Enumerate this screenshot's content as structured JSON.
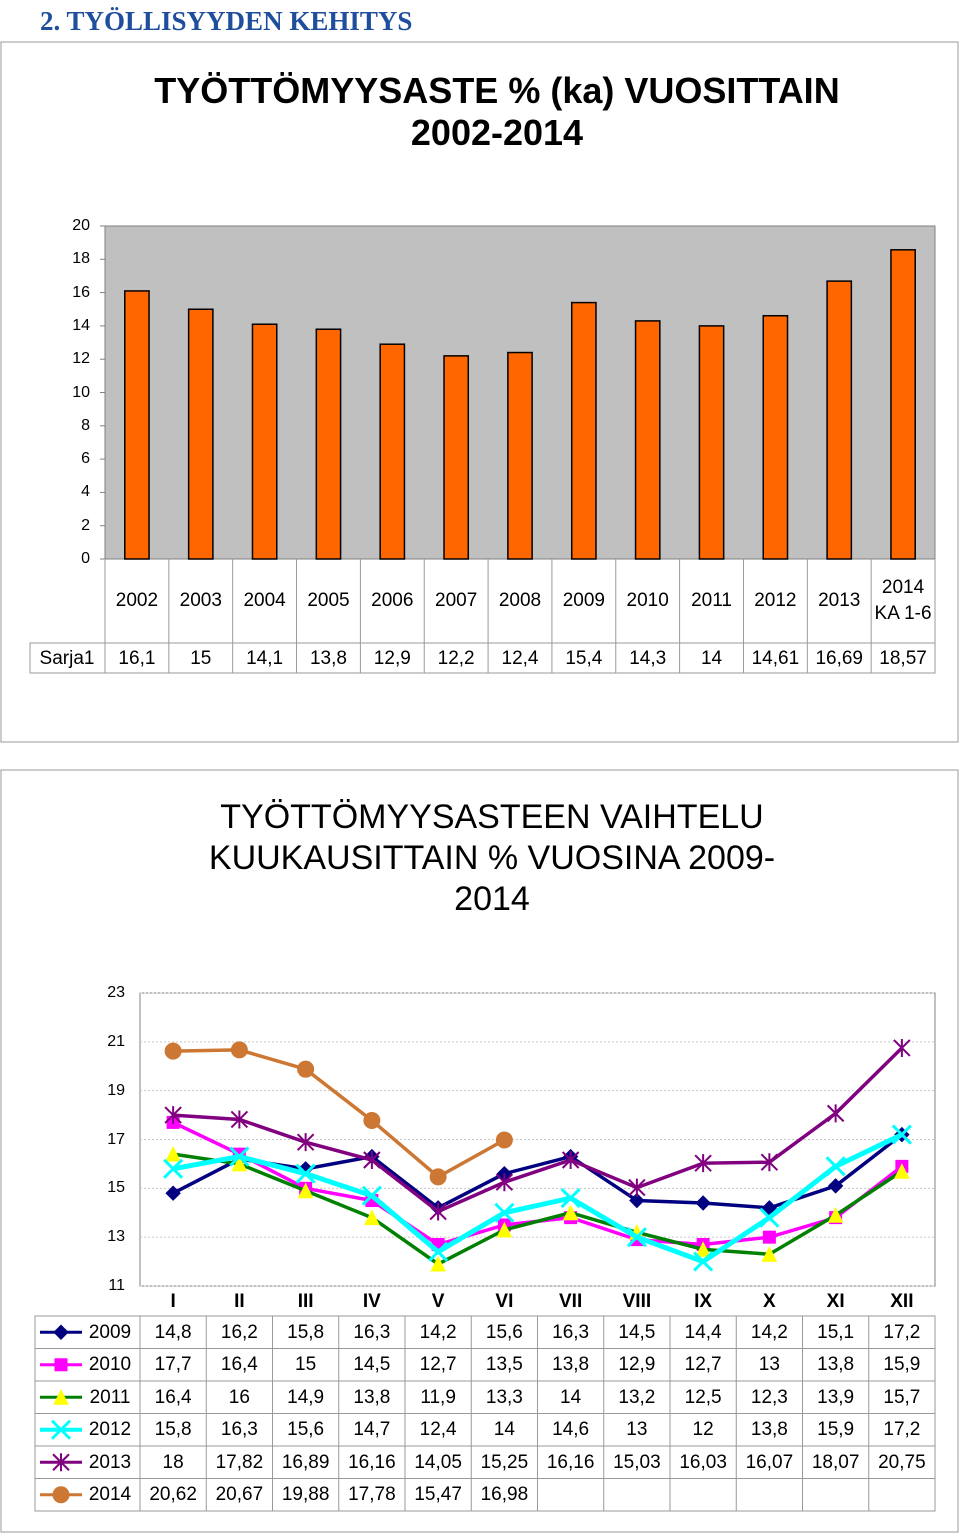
{
  "header": "2. TYÖLLISYYDEN KEHITYS",
  "chart_data": [
    {
      "type": "bar",
      "title": "TYÖTTÖMYYSASTE % (ka) VUOSITTAIN 2002-2014",
      "categories": [
        "2002",
        "2003",
        "2004",
        "2005",
        "2006",
        "2007",
        "2008",
        "2009",
        "2010",
        "2011",
        "2012",
        "2013",
        "2014 KA 1-6"
      ],
      "series": [
        {
          "name": "Sarja1",
          "color": "#ff6600",
          "values": [
            16.1,
            15,
            14.1,
            13.8,
            12.9,
            12.2,
            12.4,
            15.4,
            14.3,
            14,
            14.61,
            16.69,
            18.57
          ],
          "value_labels": [
            "16,1",
            "15",
            "14,1",
            "13,8",
            "12,9",
            "12,2",
            "12,4",
            "15,4",
            "14,3",
            "14",
            "14,61",
            "16,69",
            "18,57"
          ]
        }
      ],
      "ylim": [
        0,
        20
      ],
      "yticks": [
        0,
        2,
        4,
        6,
        8,
        10,
        12,
        14,
        16,
        18,
        20
      ],
      "grid": false,
      "background": "#c0c0c0"
    },
    {
      "type": "line",
      "title": "TYÖTTÖMYYSASTEEN VAIHTELU KUUKAUSITTAIN % VUOSINA 2009-2014",
      "categories": [
        "I",
        "II",
        "III",
        "IV",
        "V",
        "VI",
        "VII",
        "VIII",
        "IX",
        "X",
        "XI",
        "XII"
      ],
      "series": [
        {
          "name": "2009",
          "color": "#000080",
          "marker": "diamond",
          "values": [
            14.8,
            16.2,
            15.8,
            16.3,
            14.2,
            15.6,
            16.3,
            14.5,
            14.4,
            14.2,
            15.1,
            17.2
          ],
          "value_labels": [
            "14,8",
            "16,2",
            "15,8",
            "16,3",
            "14,2",
            "15,6",
            "16,3",
            "14,5",
            "14,4",
            "14,2",
            "15,1",
            "17,2"
          ]
        },
        {
          "name": "2010",
          "color": "#ff00ff",
          "marker": "square",
          "values": [
            17.7,
            16.4,
            15,
            14.5,
            12.7,
            13.5,
            13.8,
            12.9,
            12.7,
            13,
            13.8,
            15.9
          ],
          "value_labels": [
            "17,7",
            "16,4",
            "15",
            "14,5",
            "12,7",
            "13,5",
            "13,8",
            "12,9",
            "12,7",
            "13",
            "13,8",
            "15,9"
          ]
        },
        {
          "name": "2011",
          "color": "#008000",
          "marker": "triangle",
          "marker_color": "#ffff00",
          "values": [
            16.4,
            16,
            14.9,
            13.8,
            11.9,
            13.3,
            14,
            13.2,
            12.5,
            12.3,
            13.9,
            15.7
          ],
          "value_labels": [
            "16,4",
            "16",
            "14,9",
            "13,8",
            "11,9",
            "13,3",
            "14",
            "13,2",
            "12,5",
            "12,3",
            "13,9",
            "15,7"
          ]
        },
        {
          "name": "2012",
          "color": "#00ffff",
          "marker": "x",
          "values": [
            15.8,
            16.3,
            15.6,
            14.7,
            12.4,
            14,
            14.6,
            13,
            12,
            13.8,
            15.9,
            17.2
          ],
          "value_labels": [
            "15,8",
            "16,3",
            "15,6",
            "14,7",
            "12,4",
            "14",
            "14,6",
            "13",
            "12",
            "13,8",
            "15,9",
            "17,2"
          ]
        },
        {
          "name": "2013",
          "color": "#800080",
          "marker": "star",
          "values": [
            18,
            17.82,
            16.89,
            16.16,
            14.05,
            15.25,
            16.16,
            15.03,
            16.03,
            16.07,
            18.07,
            20.75
          ],
          "value_labels": [
            "18",
            "17,82",
            "16,89",
            "16,16",
            "14,05",
            "15,25",
            "16,16",
            "15,03",
            "16,03",
            "16,07",
            "18,07",
            "20,75"
          ]
        },
        {
          "name": "2014",
          "color": "#cc7733",
          "marker": "circle",
          "values": [
            20.62,
            20.67,
            19.88,
            17.78,
            15.47,
            16.98,
            null,
            null,
            null,
            null,
            null,
            null
          ],
          "value_labels": [
            "20,62",
            "20,67",
            "19,88",
            "17,78",
            "15,47",
            "16,98",
            null,
            null,
            null,
            null,
            null,
            null
          ]
        }
      ],
      "ylim": [
        11,
        23
      ],
      "yticks": [
        11,
        13,
        15,
        17,
        19,
        21,
        23
      ],
      "grid": true
    }
  ]
}
